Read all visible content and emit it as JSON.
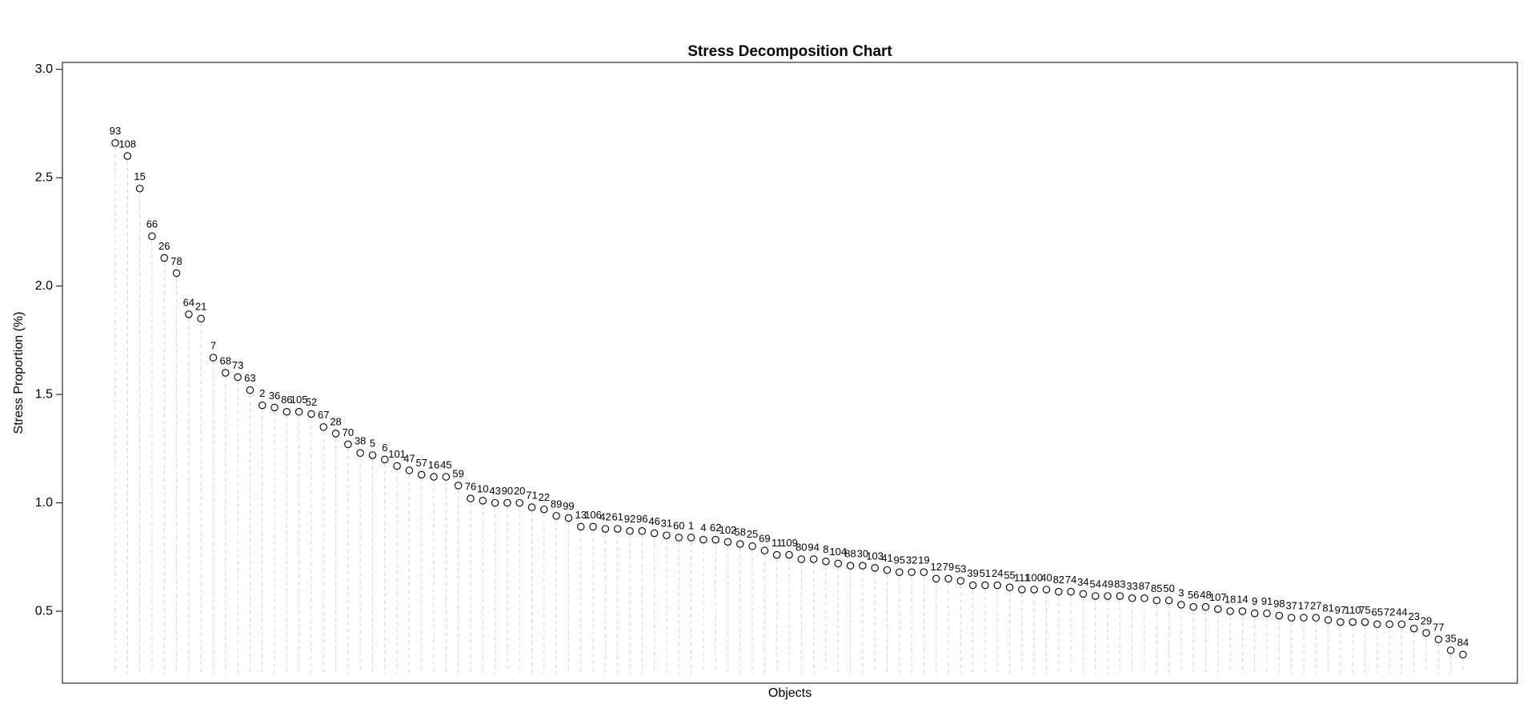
{
  "chart_data": {
    "type": "dot",
    "title": "Stress Decomposition Chart",
    "x_label": "Objects",
    "y_label": "Stress Proportion (%)",
    "categories": [
      "93",
      "108",
      "15",
      "66",
      "26",
      "78",
      "64",
      "21",
      "7",
      "68",
      "73",
      "63",
      "2",
      "36",
      "86",
      "105",
      "52",
      "67",
      "28",
      "70",
      "38",
      "5",
      "6",
      "101",
      "47",
      "57",
      "16",
      "45",
      "59",
      "76",
      "10",
      "43",
      "90",
      "20",
      "71",
      "22",
      "89",
      "99",
      "13",
      "106",
      "42",
      "61",
      "92",
      "96",
      "46",
      "31",
      "60",
      "1",
      "4",
      "62",
      "102",
      "58",
      "25",
      "69",
      "11",
      "109",
      "80",
      "94",
      "8",
      "104",
      "88",
      "30",
      "103",
      "41",
      "95",
      "32",
      "19",
      "12",
      "79",
      "53",
      "39",
      "51",
      "24",
      "55",
      "111",
      "100",
      "40",
      "82",
      "74",
      "34",
      "54",
      "49",
      "83",
      "33",
      "87",
      "85",
      "50",
      "3",
      "56",
      "48",
      "107",
      "18",
      "14",
      "9",
      "91",
      "98",
      "37",
      "17",
      "27",
      "81",
      "97",
      "110",
      "75",
      "65",
      "72",
      "44",
      "23",
      "29",
      "77",
      "35",
      "84"
    ],
    "values": [
      2.66,
      2.6,
      2.45,
      2.23,
      2.13,
      2.06,
      1.87,
      1.85,
      1.67,
      1.6,
      1.58,
      1.52,
      1.45,
      1.44,
      1.42,
      1.42,
      1.41,
      1.35,
      1.32,
      1.27,
      1.23,
      1.22,
      1.2,
      1.17,
      1.15,
      1.13,
      1.12,
      1.12,
      1.08,
      1.02,
      1.01,
      1.0,
      1.0,
      1.0,
      0.98,
      0.97,
      0.94,
      0.93,
      0.89,
      0.89,
      0.88,
      0.88,
      0.87,
      0.87,
      0.86,
      0.85,
      0.84,
      0.84,
      0.83,
      0.83,
      0.82,
      0.81,
      0.8,
      0.78,
      0.76,
      0.76,
      0.74,
      0.74,
      0.73,
      0.72,
      0.71,
      0.71,
      0.7,
      0.69,
      0.68,
      0.68,
      0.68,
      0.65,
      0.65,
      0.64,
      0.62,
      0.62,
      0.62,
      0.61,
      0.6,
      0.6,
      0.6,
      0.59,
      0.59,
      0.58,
      0.57,
      0.57,
      0.57,
      0.56,
      0.56,
      0.55,
      0.55,
      0.53,
      0.52,
      0.52,
      0.51,
      0.5,
      0.5,
      0.49,
      0.49,
      0.48,
      0.47,
      0.47,
      0.47,
      0.46,
      0.45,
      0.45,
      0.45,
      0.44,
      0.44,
      0.44,
      0.42,
      0.4,
      0.37,
      0.32,
      0.3
    ],
    "color": "#000000",
    "ylim": [
      0.168,
      3.032
    ],
    "yticks": [
      0.5,
      {
        "value": 1.0,
        "label": "1.0"
      },
      1.5,
      {
        "value": 2.0,
        "label": "2.0"
      },
      2.5,
      {
        "value": 3.0,
        "label": "3.0"
      }
    ]
  }
}
